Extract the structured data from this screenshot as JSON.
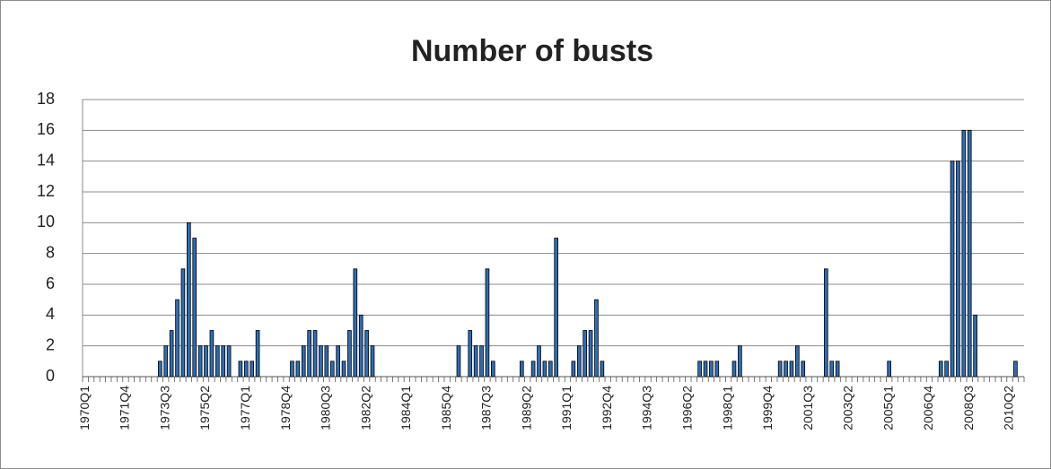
{
  "chart_data": {
    "type": "bar",
    "title": "Number of busts",
    "categories": [
      "1970Q1",
      null,
      null,
      null,
      null,
      null,
      null,
      "1971Q4",
      null,
      null,
      null,
      null,
      null,
      null,
      "1973Q3",
      null,
      null,
      null,
      null,
      null,
      null,
      "1975Q2",
      null,
      null,
      null,
      null,
      null,
      null,
      "1977Q1",
      null,
      null,
      null,
      null,
      null,
      null,
      "1978Q4",
      null,
      null,
      null,
      null,
      null,
      null,
      "1980Q3",
      null,
      null,
      null,
      null,
      null,
      null,
      "1982Q2",
      null,
      null,
      null,
      null,
      null,
      null,
      "1984Q1",
      null,
      null,
      null,
      null,
      null,
      null,
      "1985Q4",
      null,
      null,
      null,
      null,
      null,
      null,
      "1987Q3",
      null,
      null,
      null,
      null,
      null,
      null,
      "1989Q2",
      null,
      null,
      null,
      null,
      null,
      null,
      "1991Q1",
      null,
      null,
      null,
      null,
      null,
      null,
      "1992Q4",
      null,
      null,
      null,
      null,
      null,
      null,
      "1994Q3",
      null,
      null,
      null,
      null,
      null,
      null,
      "1996Q2",
      null,
      null,
      null,
      null,
      null,
      null,
      "1998Q1",
      null,
      null,
      null,
      null,
      null,
      null,
      "1999Q4",
      null,
      null,
      null,
      null,
      null,
      null,
      "2001Q3",
      null,
      null,
      null,
      null,
      null,
      null,
      "2003Q2",
      null,
      null,
      null,
      null,
      null,
      null,
      "2005Q1",
      null,
      null,
      null,
      null,
      null,
      null,
      "2006Q4",
      null,
      null,
      null,
      null,
      null,
      null,
      "2008Q3",
      null,
      null,
      null,
      null,
      null,
      null,
      "2010Q2",
      null,
      null
    ],
    "values": [
      0,
      0,
      0,
      0,
      0,
      0,
      0,
      0,
      0,
      0,
      0,
      0,
      0,
      1,
      2,
      3,
      5,
      7,
      10,
      9,
      2,
      2,
      3,
      2,
      2,
      2,
      0,
      1,
      1,
      1,
      3,
      0,
      0,
      0,
      0,
      0,
      1,
      1,
      2,
      3,
      3,
      2,
      2,
      1,
      2,
      1,
      3,
      7,
      4,
      3,
      2,
      0,
      0,
      0,
      0,
      0,
      0,
      0,
      0,
      0,
      0,
      0,
      0,
      0,
      0,
      2,
      0,
      3,
      2,
      2,
      7,
      1,
      0,
      0,
      0,
      0,
      1,
      0,
      1,
      2,
      1,
      1,
      9,
      0,
      0,
      1,
      2,
      3,
      3,
      5,
      1,
      0,
      0,
      0,
      0,
      0,
      0,
      0,
      0,
      0,
      0,
      0,
      0,
      0,
      0,
      0,
      0,
      1,
      1,
      1,
      1,
      0,
      0,
      1,
      2,
      0,
      0,
      0,
      0,
      0,
      0,
      1,
      1,
      1,
      2,
      1,
      0,
      0,
      0,
      7,
      1,
      1,
      0,
      0,
      0,
      0,
      0,
      0,
      0,
      0,
      1,
      0,
      0,
      0,
      0,
      0,
      0,
      0,
      0,
      1,
      1,
      14,
      14,
      16,
      16,
      4,
      0,
      0,
      0,
      0,
      0,
      0,
      1,
      0
    ],
    "color": "#2f6db5",
    "ylim": [
      0,
      18
    ],
    "yticks": [
      0,
      2,
      4,
      6,
      8,
      10,
      12,
      14,
      16,
      18
    ],
    "grid": true
  }
}
